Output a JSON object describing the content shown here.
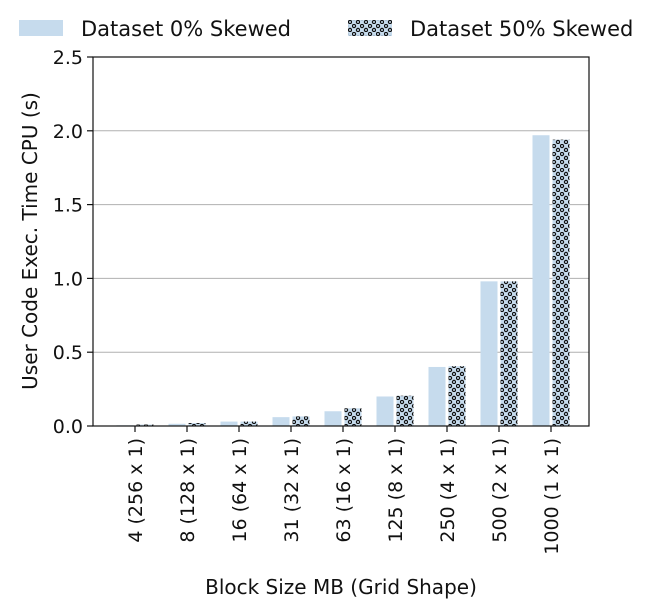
{
  "chart_data": {
    "type": "bar",
    "title": "",
    "xlabel": "Block Size MB (Grid Shape)",
    "ylabel": "User Code Exec. Time CPU (s)",
    "ylim": [
      0,
      2.5
    ],
    "yticks": [
      "0.0",
      "0.5",
      "1.0",
      "1.5",
      "2.0",
      "2.5"
    ],
    "categories": [
      "4 (256 x 1)",
      "8 (128 x 1)",
      "16 (64 x 1)",
      "31 (32 x 1)",
      "63 (16 x 1)",
      "125 (8 x 1)",
      "250 (4 x 1)",
      "500 (2 x 1)",
      "1000 (1 x 1)"
    ],
    "series": [
      {
        "name": "Dataset 0% Skewed",
        "color": "#c6dbed",
        "pattern": "solid",
        "values": [
          0.005,
          0.015,
          0.03,
          0.06,
          0.1,
          0.2,
          0.4,
          0.98,
          1.97
        ]
      },
      {
        "name": "Dataset 50% Skewed",
        "color": "#c6dbed",
        "pattern": "dotted-hatch",
        "values": [
          0.01,
          0.02,
          0.03,
          0.065,
          0.12,
          0.205,
          0.405,
          0.98,
          1.94
        ]
      }
    ],
    "grid": {
      "y": true,
      "x": false
    },
    "legend_position": "top, outside plot"
  }
}
